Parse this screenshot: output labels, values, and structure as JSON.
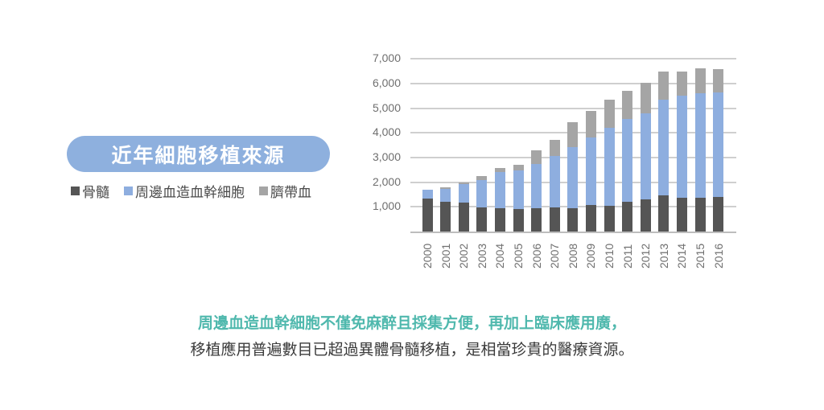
{
  "title": "近年細胞移植來源",
  "legend": [
    {
      "label": "骨髓",
      "color": "#555555"
    },
    {
      "label": "周邊血造血幹細胞",
      "color": "#8eaedf"
    },
    {
      "label": "臍帶血",
      "color": "#a5a5a5"
    }
  ],
  "captions": {
    "line1": "周邊血造血幹細胞不僅免麻醉且採集方便，再加上臨床應用廣，",
    "line2": "移植應用普遍數目已超過異體骨髓移植，是相當珍貴的醫療資源。"
  },
  "colors": {
    "title_bg": "#8eb0de",
    "caption_accent": "#4fb8ad"
  },
  "chart_data": {
    "type": "bar",
    "stacked": true,
    "title": "近年細胞移植來源",
    "xlabel": "",
    "ylabel": "",
    "ylim": [
      0,
      7000
    ],
    "yticks": [
      "1,000",
      "2,000",
      "3,000",
      "4,000",
      "5,000",
      "6,000",
      "7,000"
    ],
    "grid": true,
    "legend_position": "left",
    "categories": [
      "2000",
      "2001",
      "2002",
      "2003",
      "2004",
      "2005",
      "2006",
      "2007",
      "2008",
      "2009",
      "2010",
      "2011",
      "2012",
      "2013",
      "2014",
      "2015",
      "2016"
    ],
    "series": [
      {
        "name": "骨髓",
        "color": "#555555",
        "values": [
          1330,
          1200,
          1170,
          990,
          950,
          900,
          950,
          990,
          960,
          1070,
          1040,
          1200,
          1290,
          1470,
          1360,
          1380,
          1410
        ]
      },
      {
        "name": "周邊血造血幹細胞",
        "color": "#8eaedf",
        "values": [
          380,
          520,
          740,
          1110,
          1450,
          1570,
          1800,
          2080,
          2470,
          2750,
          3170,
          3380,
          3500,
          3880,
          4150,
          4220,
          4240
        ]
      },
      {
        "name": "臍帶血",
        "color": "#a5a5a5",
        "values": [
          0,
          60,
          90,
          150,
          180,
          250,
          540,
          660,
          1000,
          1080,
          1150,
          1140,
          1230,
          1140,
          970,
          1020,
          950
        ]
      }
    ]
  }
}
